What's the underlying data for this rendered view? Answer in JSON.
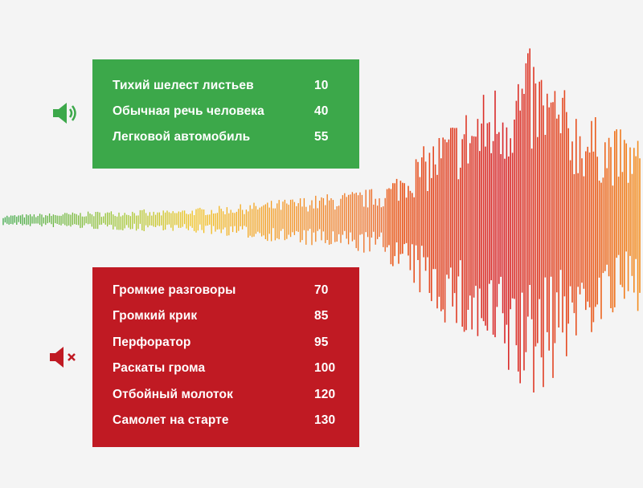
{
  "colors": {
    "quiet_panel": "#3ca84a",
    "loud_panel": "#c01a23",
    "wave_gradient": [
      "#3ca84a",
      "#a8c832",
      "#f2c21c",
      "#f4921e",
      "#ea5a1e",
      "#d8262a",
      "#ea5a1e",
      "#f4921e"
    ]
  },
  "icons": {
    "quiet": "speaker-sound-icon",
    "loud": "speaker-muted-icon"
  },
  "quiet_sounds": {
    "items": [
      {
        "label": "Тихий шелест листьев",
        "value": "10"
      },
      {
        "label": "Обычная речь человека",
        "value": "40"
      },
      {
        "label": "Легковой автомобиль",
        "value": "55"
      }
    ]
  },
  "loud_sounds": {
    "items": [
      {
        "label": "Громкие разговоры",
        "value": "70"
      },
      {
        "label": "Громкий крик",
        "value": "85"
      },
      {
        "label": "Перфоратор",
        "value": "95"
      },
      {
        "label": "Раскаты грома",
        "value": "100"
      },
      {
        "label": "Отбойный молоток",
        "value": "120"
      },
      {
        "label": "Самолет на старте",
        "value": "130"
      }
    ]
  }
}
